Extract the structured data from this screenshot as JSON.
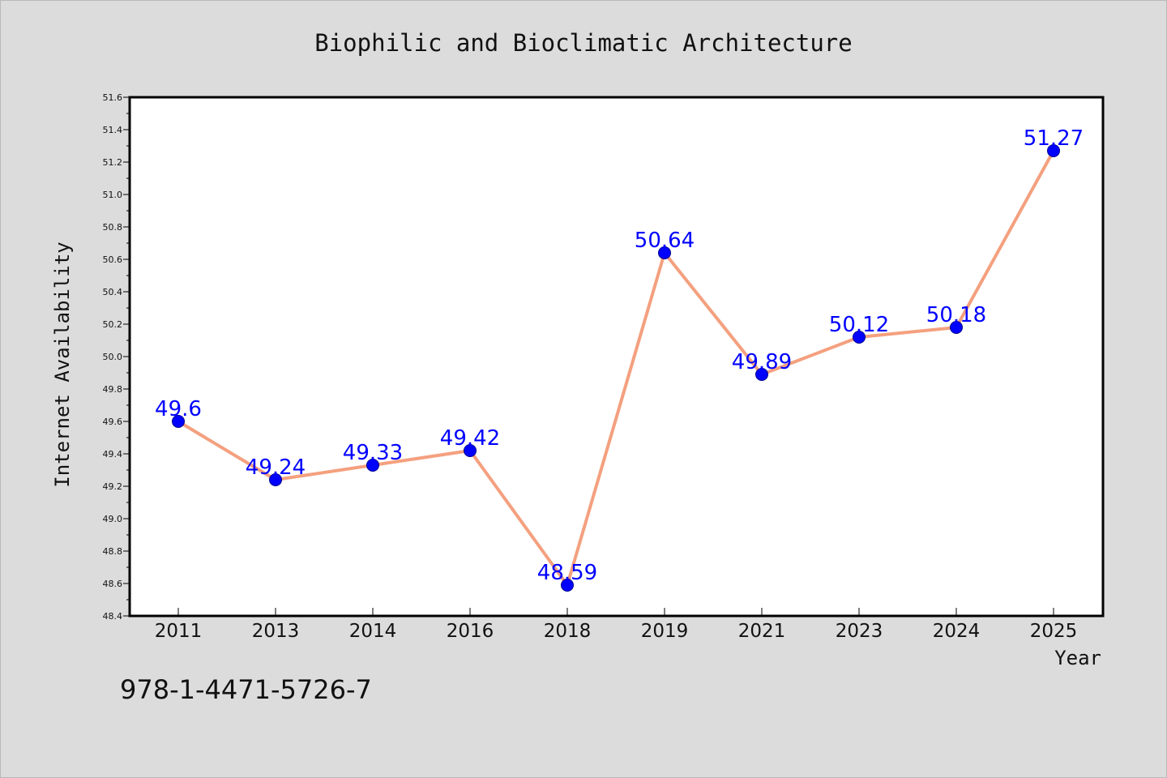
{
  "chart_data": {
    "type": "line",
    "title": "Biophilic and Bioclimatic Architecture",
    "xlabel": "Year",
    "ylabel": "Internet Availability",
    "categories": [
      "2011",
      "2013",
      "2014",
      "2016",
      "2018",
      "2019",
      "2021",
      "2023",
      "2024",
      "2025"
    ],
    "series": [
      {
        "values": [
          49.6,
          49.24,
          49.33,
          49.42,
          48.59,
          50.64,
          49.89,
          50.12,
          50.18,
          51.27
        ],
        "data_labels": [
          "49.6",
          "49.24",
          "49.33",
          "49.42",
          "48.59",
          "50.64",
          "49.89",
          "50.12",
          "50.18",
          "51.27"
        ]
      }
    ],
    "ylim": [
      48.4,
      51.6
    ],
    "yticks": [
      "48.4",
      "48.6",
      "48.8",
      "49.0",
      "49.2",
      "49.4",
      "49.6",
      "49.8",
      "50.0",
      "50.2",
      "50.4",
      "50.6",
      "50.8",
      "51.0",
      "51.2",
      "51.4",
      "51.6"
    ],
    "grid": false,
    "legend": "none",
    "colors": {
      "line": "#f4a07f",
      "marker": "#0000ff",
      "marker_edge": "#00008b",
      "data_label": "#0000ff",
      "background": "#dcdcdc",
      "plot_background": "#ffffff"
    }
  },
  "annotation": {
    "isbn": "978-1-4471-5726-7"
  }
}
